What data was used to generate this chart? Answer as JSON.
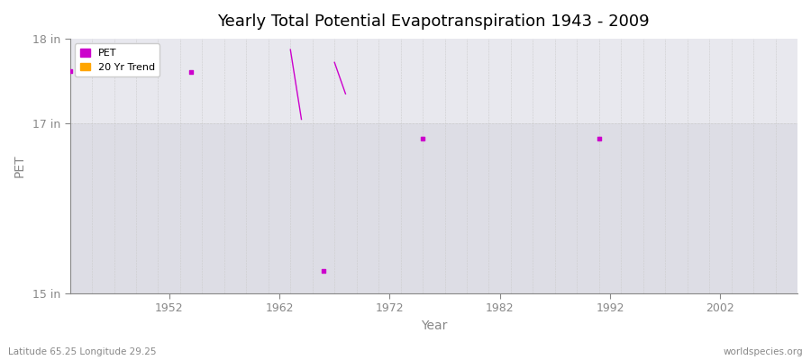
{
  "title": "Yearly Total Potential Evapotranspiration 1943 - 2009",
  "xlabel": "Year",
  "ylabel": "PET",
  "footnote_left": "Latitude 65.25 Longitude 29.25",
  "footnote_right": "worldspecies.org",
  "xlim": [
    1943,
    2009
  ],
  "ylim": [
    15,
    18
  ],
  "yticks": [
    15,
    17,
    18
  ],
  "ytick_labels": [
    "15 in",
    "17 in",
    "18 in"
  ],
  "xticks": [
    1952,
    1962,
    1972,
    1982,
    1992,
    2002
  ],
  "bg_color": "#ffffff",
  "plot_bg_color_top": "#e8e8ee",
  "plot_bg_color_bottom": "#dddde5",
  "grid_color": "#cccccc",
  "pet_color": "#cc00cc",
  "trend_color": "#ffa500",
  "pet_scatter": [
    [
      1943,
      17.62
    ],
    [
      1954,
      17.61
    ],
    [
      1966,
      15.27
    ],
    [
      1975,
      16.82
    ],
    [
      1991,
      16.82
    ]
  ],
  "pet_lines": [
    {
      "x": [
        1963,
        1964
      ],
      "y": [
        17.87,
        17.05
      ]
    },
    {
      "x": [
        1967,
        1968
      ],
      "y": [
        17.72,
        17.35
      ]
    }
  ]
}
